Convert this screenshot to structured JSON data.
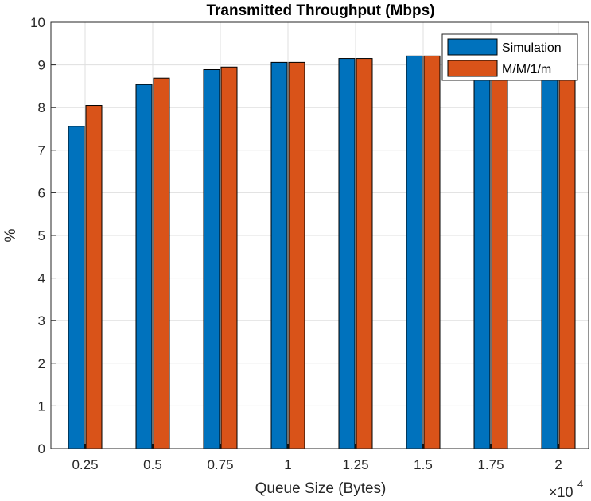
{
  "chart_data": {
    "type": "bar",
    "title": "Transmitted Throughput (Mbps)",
    "xlabel": "Queue Size (Bytes)",
    "ylabel": "%",
    "x_multiplier_base": "×10",
    "x_multiplier_exponent": "4",
    "categories": [
      "0.25",
      "0.5",
      "0.75",
      "1",
      "1.25",
      "1.5",
      "1.75",
      "2"
    ],
    "series": [
      {
        "name": "Simulation",
        "color": "#0072BD",
        "values": [
          7.56,
          8.54,
          8.89,
          9.06,
          9.15,
          9.21,
          9.24,
          9.27
        ]
      },
      {
        "name": "M/M/1/m",
        "color": "#D95319",
        "values": [
          8.05,
          8.69,
          8.95,
          9.06,
          9.15,
          9.21,
          9.25,
          9.28
        ]
      }
    ],
    "ylim": [
      0,
      10
    ],
    "yticks": [
      "0",
      "1",
      "2",
      "3",
      "4",
      "5",
      "6",
      "7",
      "8",
      "9",
      "10"
    ],
    "grid": true,
    "legend": "top-right"
  }
}
